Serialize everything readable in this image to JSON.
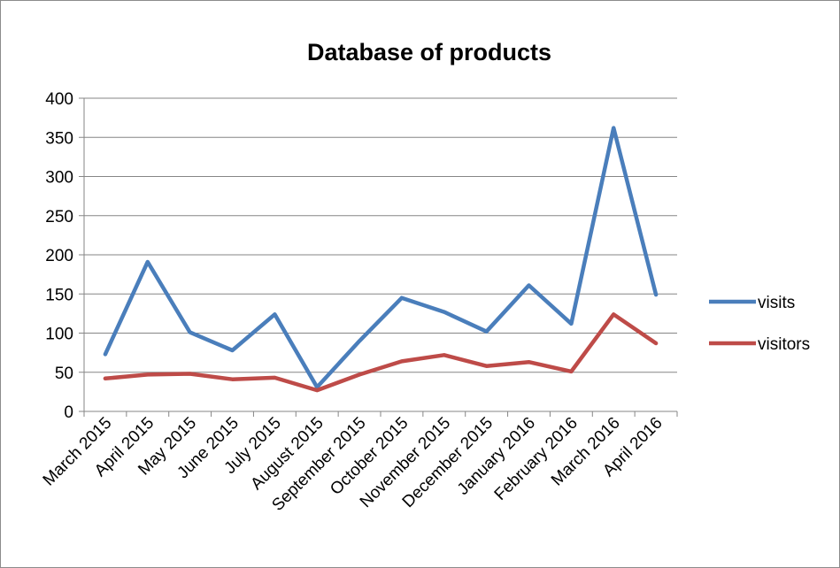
{
  "chart_data": {
    "type": "line",
    "title": "Database of products",
    "categories": [
      "March 2015",
      "April 2015",
      "May 2015",
      "June 2015",
      "July 2015",
      "August 2015",
      "September 2015",
      "October 2015",
      "November 2015",
      "December 2015",
      "January 2016",
      "February 2016",
      "March 2016",
      "April 2016"
    ],
    "series": [
      {
        "name": "visits",
        "color": "#4a7ebb",
        "values": [
          73,
          191,
          101,
          78,
          124,
          31,
          90,
          145,
          127,
          102,
          161,
          112,
          362,
          149
        ]
      },
      {
        "name": "visitors",
        "color": "#be4b48",
        "values": [
          42,
          47,
          48,
          41,
          43,
          27,
          47,
          64,
          72,
          58,
          63,
          51,
          124,
          87
        ]
      }
    ],
    "ylim": [
      0,
      400
    ],
    "yticks": [
      0,
      50,
      100,
      150,
      200,
      250,
      300,
      350,
      400
    ],
    "grid": true,
    "legend": "right"
  }
}
